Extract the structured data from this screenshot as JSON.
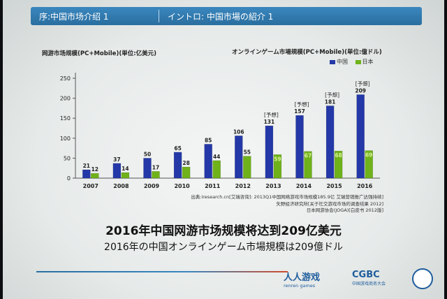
{
  "header": {
    "left_title": "序:中国市场介绍 1",
    "right_title": "イントロ: 中国市場の紹介 1"
  },
  "chart": {
    "left_title": "网游市场规模(PC+Mobile)(単位:亿美元)",
    "right_title": "オンラインゲーム市場規模(PC+Mobile)(単位:億ドル)",
    "legend": {
      "series_a": "中国",
      "series_b": "日本"
    },
    "forecast_label": "[予想]"
  },
  "chart_data": {
    "type": "bar",
    "categories": [
      "2007",
      "2008",
      "2009",
      "2010",
      "2011",
      "2012",
      "2013",
      "2014",
      "2015",
      "2016"
    ],
    "series": [
      {
        "name": "中国",
        "values": [
          21,
          37,
          50,
          65,
          85,
          106,
          131,
          157,
          181,
          209
        ],
        "color": "#2438a8"
      },
      {
        "name": "日本",
        "values": [
          12,
          14,
          17,
          28,
          44,
          55,
          59,
          67,
          68,
          69
        ],
        "color": "#6fb21a"
      }
    ],
    "forecast_from_index": 6,
    "yticks": [
      0,
      50,
      100,
      150,
      200,
      250
    ],
    "ylim": [
      0,
      250
    ],
    "legend_position": "top-right",
    "grid": false
  },
  "source": {
    "line1": "出典:iresearch.cn[艾瑞咨询]: 2013Q1中国网络游戏市场规模185.9亿 艾瑞营销推广达强持续]",
    "line2": "矢野经济研究所[关于社交游戏市场的调查结果 2012]",
    "line3": "日本网游协会(JOGA)[白皮书 2012版]"
  },
  "headline": {
    "cn": "2016年中国网游市场规模将达到209亿美元",
    "jp": "2016年の中国オンラインゲーム市場規模は209億ドル"
  },
  "logos": {
    "renren_cn": "人人游戏",
    "renren_en": "renren games",
    "cgbc": "CGBC",
    "cgbc_sub": "中国游戏商务大会"
  }
}
